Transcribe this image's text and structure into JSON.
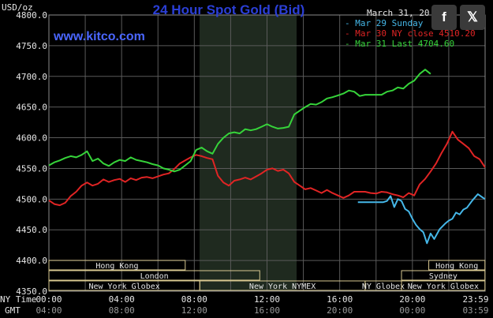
{
  "chart_data": {
    "type": "line",
    "title": "24 Hour Spot Gold (Bid)",
    "watermark": "www.kitco.com",
    "date": "March 31, 20",
    "ylabel": "USD/oz",
    "ylim": [
      4350,
      4800
    ],
    "yticks": [
      "4800.0",
      "4750.0",
      "4700.0",
      "4650.0",
      "4600.0",
      "4550.0",
      "4500.0",
      "4450.0",
      "4400.0",
      "4350.0"
    ],
    "xlim": [
      0,
      24
    ],
    "x_ny_label": "NY Time",
    "x_gmt_label": "GMT",
    "xticks_ny": [
      "00:00",
      "04:00",
      "08:00",
      "12:00",
      "16:00",
      "20:00",
      "23:59"
    ],
    "xticks_gmt": [
      "04:00",
      "08:00",
      "12:00",
      "16:00",
      "20:00",
      "00:00",
      "03:59"
    ],
    "series": [
      {
        "name": "Mar 29 Sunday",
        "label": "Mar 29 Sunday",
        "value": "",
        "color": "#45b7e8",
        "x": [
          18.0,
          18.2,
          18.4,
          18.6,
          18.8,
          19.0,
          19.2,
          19.4,
          19.6,
          19.8,
          20.0,
          20.2,
          20.4,
          20.6,
          20.8,
          21.0,
          21.2,
          21.5,
          21.8,
          22.0,
          22.2,
          22.4,
          22.6,
          22.8,
          23.0,
          23.3,
          23.6,
          23.99
        ],
        "y": [
          4495,
          4495,
          4495,
          4497,
          4505,
          4487,
          4500,
          4497,
          4484,
          4480,
          4468,
          4458,
          4451,
          4446,
          4428,
          4444,
          4435,
          4451,
          4460,
          4465,
          4468,
          4478,
          4475,
          4483,
          4486,
          4498,
          4508,
          4500
        ]
      },
      {
        "name": "Mar 30 NY close",
        "label": "Mar 30 NY close",
        "value": "4510.20",
        "color": "#e02424",
        "x": [
          0.0,
          0.3,
          0.6,
          0.9,
          1.2,
          1.5,
          1.8,
          2.1,
          2.4,
          2.7,
          3.0,
          3.3,
          3.6,
          3.9,
          4.2,
          4.5,
          4.8,
          5.1,
          5.4,
          5.7,
          6.0,
          6.3,
          6.6,
          6.9,
          7.2,
          7.5,
          7.8,
          8.1,
          8.4,
          8.7,
          9.0,
          9.3,
          9.6,
          9.9,
          10.2,
          10.5,
          10.8,
          11.1,
          11.4,
          11.7,
          12.0,
          12.3,
          12.6,
          12.9,
          13.2,
          13.5,
          13.8,
          14.1,
          14.4,
          14.7,
          15.0,
          15.3,
          15.6,
          15.9,
          16.2,
          16.5,
          16.8,
          17.1,
          17.4,
          17.7,
          18.0,
          18.3,
          18.6,
          18.9,
          19.2,
          19.5,
          19.8,
          20.1,
          20.4,
          20.7,
          21.0,
          21.3,
          21.6,
          21.9,
          22.2,
          22.5,
          22.8,
          23.1,
          23.4,
          23.7,
          23.99
        ],
        "y": [
          4498,
          4492,
          4490,
          4494,
          4505,
          4512,
          4522,
          4527,
          4522,
          4525,
          4532,
          4528,
          4531,
          4533,
          4528,
          4534,
          4531,
          4535,
          4536,
          4534,
          4537,
          4540,
          4542,
          4549,
          4558,
          4563,
          4568,
          4572,
          4570,
          4567,
          4565,
          4538,
          4527,
          4522,
          4530,
          4532,
          4535,
          4532,
          4537,
          4542,
          4548,
          4550,
          4546,
          4548,
          4542,
          4528,
          4522,
          4516,
          4518,
          4514,
          4510,
          4515,
          4510,
          4506,
          4502,
          4506,
          4512,
          4512,
          4512,
          4510,
          4509,
          4512,
          4511,
          4508,
          4506,
          4503,
          4510,
          4506,
          4524,
          4533,
          4545,
          4558,
          4575,
          4590,
          4610,
          4597,
          4590,
          4583,
          4570,
          4565,
          4552
        ]
      },
      {
        "name": "Mar 31 Last",
        "label": "Mar 31 Last",
        "value": "4704.60",
        "color": "#36d43a",
        "x": [
          0.0,
          0.3,
          0.6,
          0.9,
          1.2,
          1.5,
          1.8,
          2.1,
          2.4,
          2.7,
          3.0,
          3.3,
          3.6,
          3.9,
          4.2,
          4.5,
          4.8,
          5.1,
          5.4,
          5.7,
          6.0,
          6.3,
          6.6,
          6.9,
          7.2,
          7.5,
          7.8,
          8.1,
          8.4,
          8.7,
          9.0,
          9.3,
          9.6,
          9.9,
          10.2,
          10.5,
          10.8,
          11.1,
          11.4,
          11.7,
          12.0,
          12.3,
          12.6,
          12.9,
          13.2,
          13.5,
          13.8,
          14.1,
          14.4,
          14.7,
          15.0,
          15.3,
          15.6,
          15.9,
          16.2,
          16.5,
          16.8,
          17.1,
          17.4,
          17.7,
          18.0,
          18.3,
          18.6,
          18.9,
          19.2,
          19.5,
          19.8,
          20.1,
          20.4,
          20.7,
          21.0
        ],
        "y": [
          4555,
          4560,
          4563,
          4567,
          4570,
          4568,
          4572,
          4578,
          4562,
          4566,
          4558,
          4554,
          4560,
          4564,
          4562,
          4568,
          4564,
          4562,
          4560,
          4557,
          4555,
          4550,
          4548,
          4545,
          4548,
          4555,
          4562,
          4580,
          4584,
          4578,
          4574,
          4590,
          4600,
          4607,
          4609,
          4607,
          4614,
          4612,
          4614,
          4618,
          4622,
          4618,
          4615,
          4616,
          4618,
          4638,
          4644,
          4650,
          4655,
          4654,
          4658,
          4664,
          4666,
          4669,
          4672,
          4677,
          4675,
          4668,
          4670,
          4670,
          4670,
          4670,
          4675,
          4677,
          4682,
          4680,
          4688,
          4693,
          4704,
          4711,
          4704
        ]
      }
    ],
    "sessions": {
      "row1": [
        {
          "label": "Hong Kong"
        },
        {
          "label": "Hong Kong"
        }
      ],
      "row2": [
        {
          "label": "London"
        },
        {
          "label": "Sydney"
        }
      ],
      "row3": [
        {
          "label": "New York Globex"
        },
        {
          "label": "New York NYMEX"
        },
        {
          "label": "NY Globex"
        },
        {
          "label": "New York Globex"
        }
      ]
    }
  },
  "share": {
    "facebook": "f",
    "x": "𝕏"
  },
  "colors": {
    "background": "#000000",
    "grid": "#5a5a5a",
    "title": "#2b3fd6",
    "highlight": "#1f2a1f",
    "session": "#d8c890"
  }
}
